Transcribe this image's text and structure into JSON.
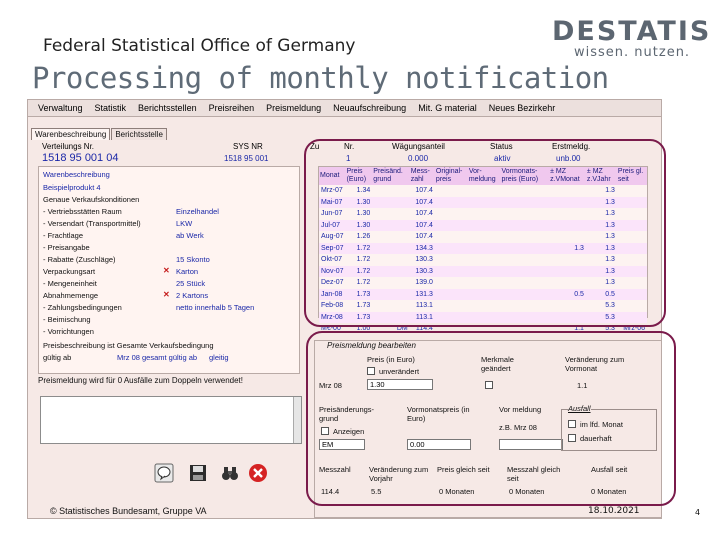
{
  "slide": {
    "org": "Federal Statistical Office of Germany",
    "logo_main": "DESTATIS",
    "logo_sub": "wissen. nutzen.",
    "title": "Processing of monthly notification",
    "copyright": "© Statistisches Bundesamt, Gruppe VA",
    "date": "18.10.2021",
    "page": "4"
  },
  "menu": [
    "Verwaltung",
    "Statistik",
    "Berichtsstellen",
    "Preisreihen",
    "Preismeldung",
    "Neuaufschreibung",
    "Mit. G material",
    "Neues Bezirkehr"
  ],
  "tabs": [
    "Warenbeschreibung",
    "Berichtsstelle"
  ],
  "header": {
    "verteilungs_label": "Verteilungs Nr.",
    "verteilungs_value": "1518 95 001 04",
    "sysnr_label": "SYS NR",
    "sysnr_value": "1518 95 001",
    "zu_label": "Zu",
    "nr_label": "Nr.",
    "nr_value": "1",
    "waegung_label": "Wägungsanteil",
    "waegung_value": "0.000",
    "status_label": "Status",
    "status_value": "aktiv",
    "erstmeld_label": "Erstmeldg.",
    "erstmeld_value": "unb.00"
  },
  "description": {
    "title": "Warenbeschreibung",
    "rows": [
      {
        "label": "Beispielprodukt 4",
        "value": "",
        "x": false,
        "blue": true
      },
      {
        "label": "Genaue Verkaufskonditionen",
        "value": "",
        "x": false,
        "blue": false
      },
      {
        "label": "- Vertriebsstätten Raum",
        "value": "Einzelhandel",
        "x": false,
        "blue": false
      },
      {
        "label": "- Versendart (Transportmittel)",
        "value": "LKW",
        "x": false,
        "blue": false
      },
      {
        "label": "- Frachtlage",
        "value": "ab Werk",
        "x": false,
        "blue": false
      },
      {
        "label": "- Preisangabe",
        "value": "",
        "x": false,
        "blue": false
      },
      {
        "label": "- Rabatte (Zuschläge)",
        "value": "15 Skonto",
        "x": false,
        "blue": false
      },
      {
        "label": "  Verpackungsart",
        "value": "Karton",
        "x": true,
        "blue": false
      },
      {
        "label": "- Mengeneinheit",
        "value": "25 Stück",
        "x": false,
        "blue": false
      },
      {
        "label": "  Abnahmemenge",
        "value": "2 Kartons",
        "x": true,
        "blue": false
      },
      {
        "label": "- Zahlungsbedingungen",
        "value": "netto innerhalb 5 Tagen",
        "x": false,
        "blue": false
      },
      {
        "label": "- Beimischung",
        "value": "",
        "x": false,
        "blue": false
      },
      {
        "label": "- Vorrichtungen",
        "value": "",
        "x": false,
        "blue": false
      },
      {
        "label": "Preisbeschreibung ist Gesamte Verkaufsbedingung",
        "value": "",
        "x": false,
        "blue": false
      },
      {
        "label": "gültig ab",
        "value": "Mrz 08 gesamt gültig ab",
        "x": false,
        "blue": false
      }
    ],
    "valid_value": "gleitig"
  },
  "notice": "Preismeldung wird für 0 Ausfälle zum Doppeln verwendet!",
  "price_table": {
    "columns": [
      "Monat",
      "Preis (Euro)",
      "Preisänd. grund",
      "Mess-zahl",
      "Original-preis",
      "Vor-meldung",
      "Vormonats-preis (Euro)",
      "± MZ z.VMonat",
      "± MZ z.VJahr",
      "Preis gl. seit"
    ],
    "rows": [
      [
        "Mrz-07",
        "1.34",
        "",
        "107.4",
        "",
        "",
        "",
        "",
        "1.3",
        ""
      ],
      [
        "Mai-07",
        "1.30",
        "",
        "107.4",
        "",
        "",
        "",
        "",
        "1.3",
        ""
      ],
      [
        "Jun-07",
        "1.30",
        "",
        "107.4",
        "",
        "",
        "",
        "",
        "1.3",
        ""
      ],
      [
        "Jul-07",
        "1.30",
        "",
        "107.4",
        "",
        "",
        "",
        "",
        "1.3",
        ""
      ],
      [
        "Aug-07",
        "1.26",
        "",
        "107.4",
        "",
        "",
        "",
        "",
        "1.3",
        ""
      ],
      [
        "Sep-07",
        "1.72",
        "",
        "134.3",
        "",
        "",
        "",
        "1.3",
        "1.3",
        ""
      ],
      [
        "Okt-07",
        "1.72",
        "",
        "130.3",
        "",
        "",
        "",
        "",
        "1.3",
        ""
      ],
      [
        "Nov-07",
        "1.72",
        "",
        "130.3",
        "",
        "",
        "",
        "",
        "1.3",
        ""
      ],
      [
        "Dez-07",
        "1.72",
        "",
        "139.0",
        "",
        "",
        "",
        "",
        "1.3",
        ""
      ],
      [
        "Jan-08",
        "1.73",
        "",
        "131.3",
        "",
        "",
        "",
        "0.5",
        "0.5",
        ""
      ],
      [
        "Feb-08",
        "1.73",
        "",
        "113.1",
        "",
        "",
        "",
        "",
        "5.3",
        ""
      ],
      [
        "Mrz-08",
        "1.73",
        "",
        "113.1",
        "",
        "",
        "",
        "",
        "5.3",
        ""
      ],
      [
        "M€-00",
        "1.00",
        "DM",
        "114.4",
        "",
        "",
        "",
        "1.1",
        "5.3",
        "Mrz-06"
      ]
    ]
  },
  "processing": {
    "title": "Preismeldung bearbeiten",
    "price_label": "Preis (in Euro)",
    "unchanged_label": "unverändert",
    "features_label": "Merkmale geändert",
    "change_prev_label": "Veränderung zum Vormonat",
    "month": "Mrz 08",
    "price_value": "1.30",
    "change_prev_value": "1.1",
    "reason_label": "Preisänderungs-grund",
    "display_label": "Anzeigen",
    "reason_value": "EM",
    "prev_price_label": "Vormonatspreis (in Euro)",
    "prev_price_value": "0.00",
    "prereport_label": "Vor meldung",
    "prereport_hint": "z.B. Mrz 08",
    "failure_label": "Ausfall",
    "failure_opt1": "im lfd. Monat",
    "failure_opt2": "dauerhaft",
    "index_label": "Messzahl",
    "index_value": "114.4",
    "change_yoy_label": "Veränderung zum Vorjahr",
    "change_yoy_value": "5.5",
    "same_price_label": "Preis gleich seit",
    "same_price_value": "0 Monaten",
    "same_index_label": "Messzahl gleich seit",
    "same_index_value": "0 Monaten",
    "failure_since_label": "Ausfall seit",
    "failure_since_value": "0 Monaten"
  }
}
